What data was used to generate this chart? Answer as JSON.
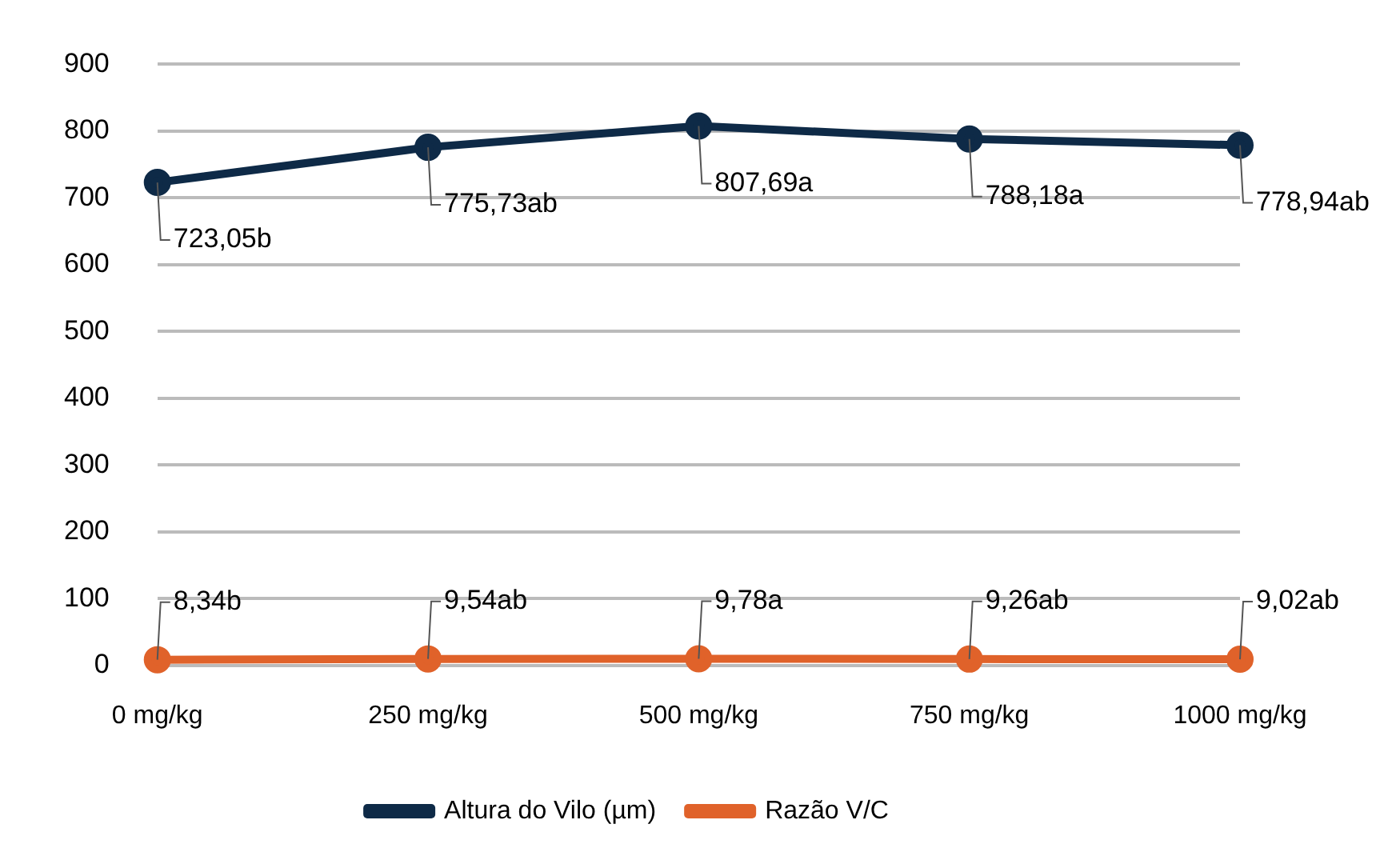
{
  "chart_data": {
    "type": "line",
    "categories": [
      "0 mg/kg",
      "250 mg/kg",
      "500 mg/kg",
      "750 mg/kg",
      "1000 mg/kg"
    ],
    "series": [
      {
        "name": "Altura do Vilo (µm)",
        "color": "#0e2a47",
        "values": [
          723.05,
          775.73,
          807.69,
          788.18,
          778.94
        ],
        "value_labels": [
          "723,05b",
          "775,73ab",
          "807,69a",
          "788,18a",
          "778,94ab"
        ]
      },
      {
        "name": "Razão V/C",
        "color": "#e0622a",
        "values": [
          8.34,
          9.54,
          9.78,
          9.26,
          9.02
        ],
        "value_labels": [
          "8,34b",
          "9,54ab",
          "9,78a",
          "9,26ab",
          "9,02ab"
        ]
      }
    ],
    "ylim": [
      0,
      900
    ],
    "yticks": [
      0,
      100,
      200,
      300,
      400,
      500,
      600,
      700,
      800,
      900
    ],
    "grid": "y",
    "legend": "bottom",
    "marker": "circle",
    "line_style": "solid"
  }
}
